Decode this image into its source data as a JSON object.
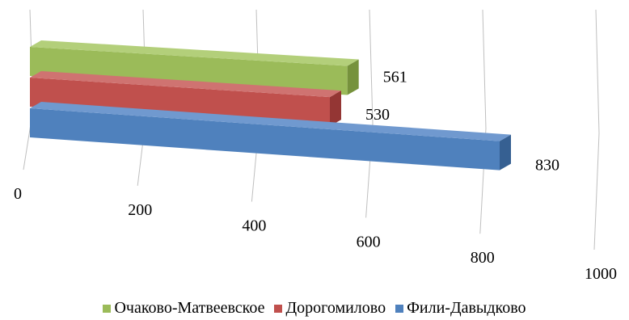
{
  "chart_data": {
    "type": "bar",
    "orientation": "horizontal",
    "style": "3d-perspective",
    "title": "",
    "xlabel": "",
    "ylabel": "",
    "xlim": [
      0,
      1000
    ],
    "x_ticks": [
      "0",
      "200",
      "400",
      "600",
      "800",
      "1000"
    ],
    "grid": true,
    "legend_position": "bottom",
    "series": [
      {
        "name": "Очаково-Матвеевское",
        "values": [
          561
        ],
        "label": "561",
        "color": "#9bbb59",
        "side_color": "#76923c",
        "top_color": "#b3cf7a"
      },
      {
        "name": "Дорогомилово",
        "values": [
          530
        ],
        "label": "530",
        "color": "#c0504d",
        "side_color": "#943634",
        "top_color": "#cf7371"
      },
      {
        "name": "Фили-Давыдково",
        "values": [
          830
        ],
        "label": "830",
        "color": "#4f81bd",
        "side_color": "#366092",
        "top_color": "#7099cf"
      }
    ]
  }
}
